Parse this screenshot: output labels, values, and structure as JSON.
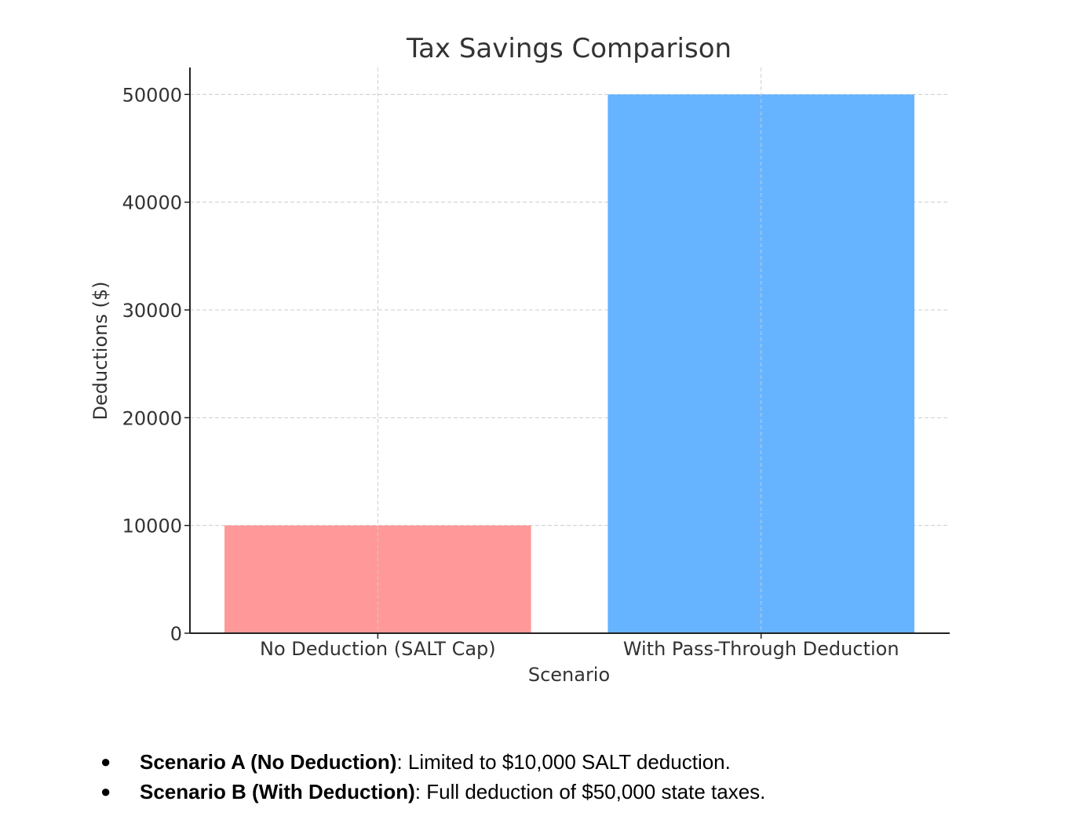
{
  "chart_data": {
    "type": "bar",
    "title": "Tax Savings Comparison",
    "xlabel": "Scenario",
    "ylabel": "Deductions ($)",
    "categories": [
      "No Deduction (SALT Cap)",
      "With Pass-Through Deduction"
    ],
    "values": [
      10000,
      50000
    ],
    "colors": [
      "#ff9999",
      "#66b3ff"
    ],
    "ylim": [
      0,
      52500
    ],
    "yticks": [
      0,
      10000,
      20000,
      30000,
      40000,
      50000
    ],
    "grid": true,
    "legend": "none"
  },
  "notes": [
    {
      "bullet": "●",
      "bold": "Scenario A (No Deduction)",
      "text": ": Limited to $10,000 SALT deduction."
    },
    {
      "bullet": "●",
      "bold": "Scenario B (With Deduction)",
      "text": ": Full deduction of $50,000 state taxes."
    }
  ]
}
